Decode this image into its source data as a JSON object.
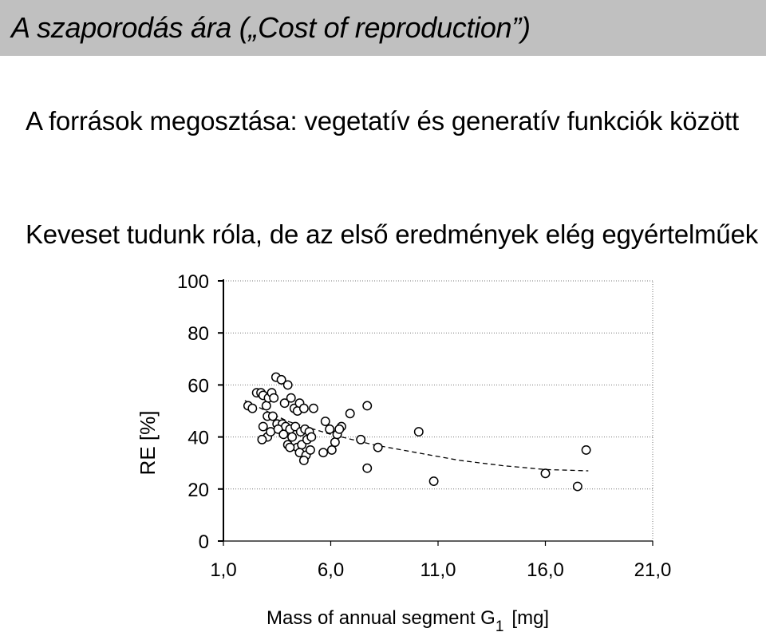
{
  "header": {
    "title": "A szaporodás ára („Cost of reproduction”)"
  },
  "body": {
    "line1": "A források megosztása: vegetatív és generatív funkciók között",
    "line2": "Keveset tudunk róla, de az első eredmények elég egyértelműek"
  },
  "chart_data": {
    "type": "scatter",
    "xlabel_main": "Mass of annual segment  G",
    "xlabel_sub": "1",
    "xlabel_unit": "[mg]",
    "ylabel": "RE [%]",
    "xlim": [
      1.0,
      21.0
    ],
    "ylim": [
      0,
      100
    ],
    "x_ticks": [
      1.0,
      6.0,
      11.0,
      16.0,
      21.0
    ],
    "x_tick_labels": [
      "1,0",
      "6,0",
      "11,0",
      "16,0",
      "21,0"
    ],
    "y_ticks": [
      0,
      20,
      40,
      60,
      80,
      100
    ],
    "y_tick_labels": [
      "0",
      "20",
      "40",
      "60",
      "80",
      "100"
    ],
    "grid": "horizontal dotted",
    "points": [
      [
        2.15,
        52
      ],
      [
        2.35,
        51
      ],
      [
        2.55,
        57
      ],
      [
        2.75,
        57
      ],
      [
        2.85,
        56
      ],
      [
        3.0,
        52
      ],
      [
        3.1,
        55
      ],
      [
        3.25,
        57
      ],
      [
        3.35,
        55
      ],
      [
        3.45,
        63
      ],
      [
        3.7,
        62
      ],
      [
        3.85,
        53
      ],
      [
        4.0,
        60
      ],
      [
        4.15,
        55
      ],
      [
        4.3,
        51
      ],
      [
        4.45,
        50
      ],
      [
        4.55,
        53
      ],
      [
        4.75,
        51
      ],
      [
        3.05,
        48
      ],
      [
        3.3,
        48
      ],
      [
        3.5,
        45
      ],
      [
        3.75,
        45
      ],
      [
        3.9,
        44
      ],
      [
        4.1,
        43
      ],
      [
        4.35,
        44
      ],
      [
        4.6,
        42
      ],
      [
        4.8,
        43
      ],
      [
        5.0,
        42
      ],
      [
        2.85,
        44
      ],
      [
        3.05,
        40
      ],
      [
        3.2,
        42
      ],
      [
        3.55,
        43
      ],
      [
        3.8,
        41
      ],
      [
        4.0,
        37
      ],
      [
        4.2,
        40
      ],
      [
        4.45,
        36
      ],
      [
        4.65,
        37
      ],
      [
        4.9,
        39
      ],
      [
        5.1,
        40
      ],
      [
        2.8,
        39
      ],
      [
        4.1,
        36
      ],
      [
        4.55,
        34
      ],
      [
        4.85,
        33
      ],
      [
        5.05,
        35
      ],
      [
        4.75,
        31
      ],
      [
        5.2,
        51
      ],
      [
        5.65,
        34
      ],
      [
        5.75,
        46
      ],
      [
        5.95,
        43
      ],
      [
        6.05,
        35
      ],
      [
        6.2,
        38
      ],
      [
        6.3,
        41
      ],
      [
        6.5,
        44
      ],
      [
        6.4,
        43
      ],
      [
        6.9,
        49
      ],
      [
        7.4,
        39
      ],
      [
        7.7,
        52
      ],
      [
        7.7,
        28
      ],
      [
        8.2,
        36
      ],
      [
        10.1,
        42
      ],
      [
        10.8,
        23
      ],
      [
        16.0,
        26
      ],
      [
        17.5,
        21
      ],
      [
        17.9,
        35
      ]
    ],
    "trend": [
      [
        2.0,
        54
      ],
      [
        4.0,
        46
      ],
      [
        6.0,
        41
      ],
      [
        8.0,
        37
      ],
      [
        10.0,
        34
      ],
      [
        12.0,
        31
      ],
      [
        14.0,
        29
      ],
      [
        16.0,
        27.5
      ],
      [
        18.0,
        27
      ]
    ]
  }
}
